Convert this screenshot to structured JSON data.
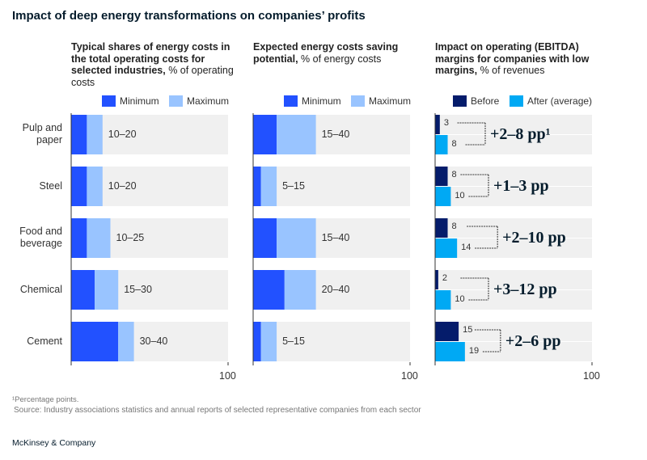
{
  "title": "Impact of deep energy transformations on companies’ profits",
  "colors": {
    "minimum": "#2251ff",
    "maximum": "#99c4ff",
    "before": "#051c6b",
    "after": "#00a9f4",
    "track": "#f0f0f0"
  },
  "chart_data": [
    {
      "type": "bar",
      "title_bold": "Typical shares of energy costs in the total operating costs for selected industries,",
      "title_rest": " % of operating costs",
      "legend": [
        "Minimum",
        "Maximum"
      ],
      "categories": [
        "Pulp and paper",
        "Steel",
        "Food and beverage",
        "Chemical",
        "Cement"
      ],
      "min": [
        10,
        10,
        10,
        15,
        30
      ],
      "max": [
        20,
        20,
        25,
        30,
        40
      ],
      "labels": [
        "10–20",
        "10–20",
        "10–25",
        "15–30",
        "30–40"
      ],
      "xlim": [
        0,
        100
      ],
      "tick": "100"
    },
    {
      "type": "bar",
      "title_bold": "Expected energy costs saving potential,",
      "title_rest": " % of energy costs",
      "legend": [
        "Minimum",
        "Maximum"
      ],
      "categories": [
        "Pulp and paper",
        "Steel",
        "Food and beverage",
        "Chemical",
        "Cement"
      ],
      "min": [
        15,
        5,
        15,
        20,
        5
      ],
      "max": [
        40,
        15,
        40,
        40,
        15
      ],
      "labels": [
        "15–40",
        "5–15",
        "15–40",
        "20–40",
        "5–15"
      ],
      "xlim": [
        0,
        100
      ],
      "tick": "100"
    },
    {
      "type": "bar",
      "title_bold": "Impact on operating (EBITDA) margins for companies with low margins,",
      "title_rest": " % of revenues",
      "legend": [
        "Before",
        "After (average)"
      ],
      "categories": [
        "Pulp and paper",
        "Steel",
        "Food and beverage",
        "Chemical",
        "Cement"
      ],
      "before": [
        3,
        8,
        8,
        2,
        15
      ],
      "after": [
        8,
        10,
        14,
        10,
        19
      ],
      "deltas": [
        "+2–8 pp¹",
        "+1–3 pp",
        "+2–10 pp",
        "+3–12 pp",
        "+2–6 pp"
      ],
      "xlim": [
        0,
        100
      ],
      "tick": "100"
    }
  ],
  "footnote": "¹Percentage points.",
  "source": "Source: Industry associations statistics and annual reports of selected representative companies from each sector",
  "brand": "McKinsey & Company"
}
